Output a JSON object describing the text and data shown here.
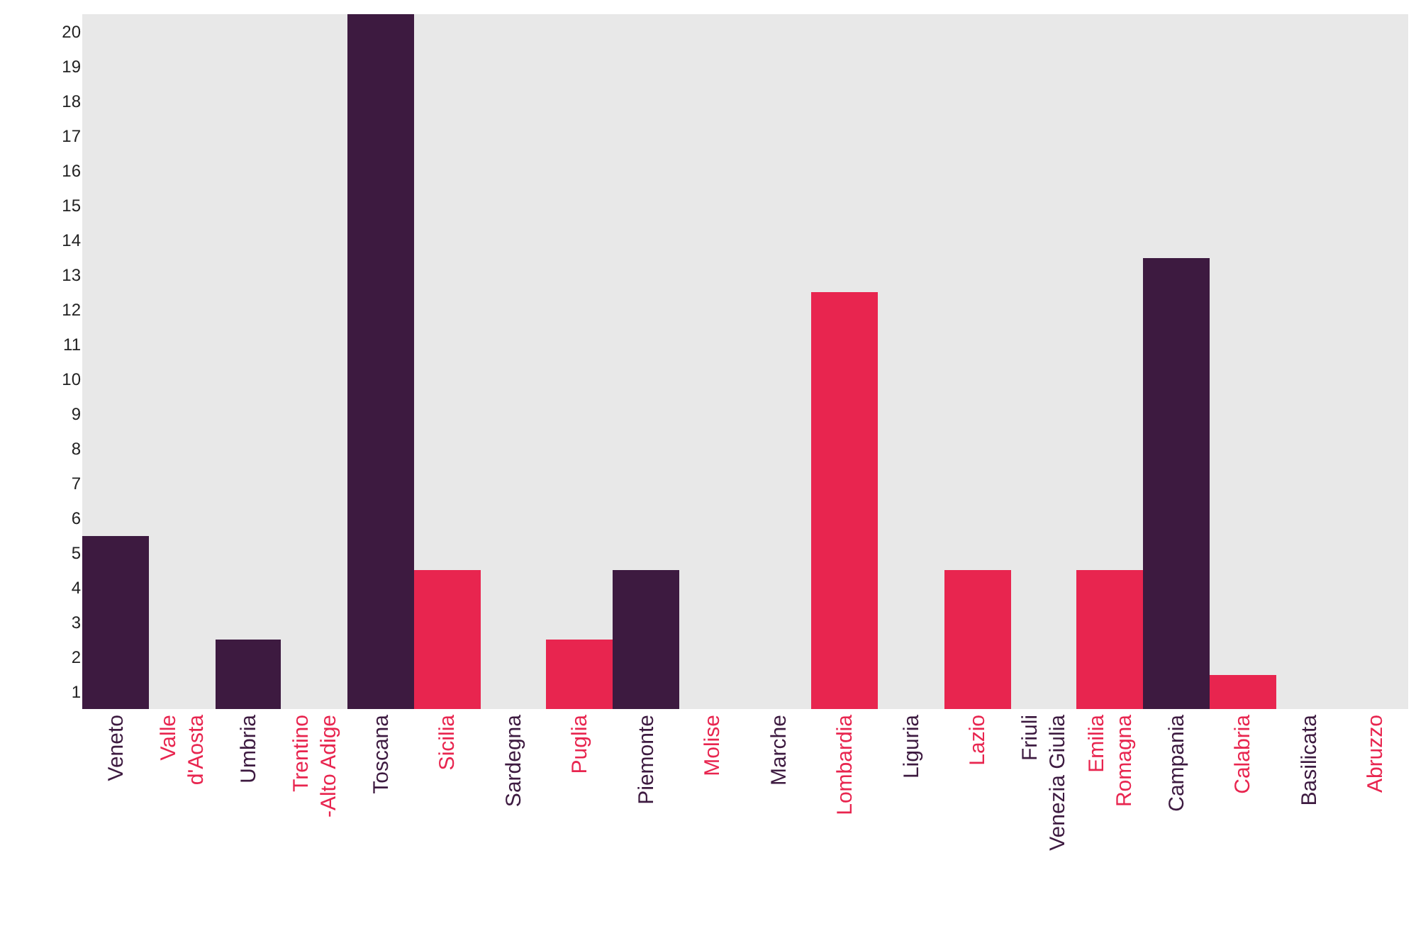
{
  "chart_data": {
    "type": "bar",
    "categories": [
      "Veneto",
      "Valle\nd'Aosta",
      "Umbria",
      "Trentino\n-Alto Adige",
      "Toscana",
      "Sicilia",
      "Sardegna",
      "Puglia",
      "Piemonte",
      "Molise",
      "Marche",
      "Lombardia",
      "Liguria",
      "Lazio",
      "Friuli\nVenezia Giulia",
      "Emilia\nRomagna",
      "Campania",
      "Calabria",
      "Basilicata",
      "Abruzzo"
    ],
    "values": [
      5,
      0,
      2,
      0,
      20,
      4,
      0,
      2,
      4,
      0,
      0,
      12,
      0,
      4,
      0,
      4,
      13,
      1,
      0,
      0
    ],
    "colors": [
      "#3d1a40",
      "#e8254f",
      "#3d1a40",
      "#e8254f",
      "#3d1a40",
      "#e8254f",
      "#3d1a40",
      "#e8254f",
      "#3d1a40",
      "#e8254f",
      "#3d1a40",
      "#e8254f",
      "#3d1a40",
      "#e8254f",
      "#3d1a40",
      "#e8254f",
      "#3d1a40",
      "#e8254f",
      "#3d1a40",
      "#e8254f"
    ],
    "ylim": [
      0,
      20
    ],
    "yticks": [
      {
        "value": 0.5,
        "label": "1"
      },
      {
        "value": 1.5,
        "label": "2"
      },
      {
        "value": 2.5,
        "label": "3"
      },
      {
        "value": 3.5,
        "label": "4"
      },
      {
        "value": 4.5,
        "label": "5"
      },
      {
        "value": 5.5,
        "label": "6"
      },
      {
        "value": 6.5,
        "label": "7"
      },
      {
        "value": 7.5,
        "label": "8"
      },
      {
        "value": 8.5,
        "label": "9"
      },
      {
        "value": 9.5,
        "label": "10"
      },
      {
        "value": 10.5,
        "label": "11"
      },
      {
        "value": 11.5,
        "label": "12"
      },
      {
        "value": 12.5,
        "label": "13"
      },
      {
        "value": 13.5,
        "label": "14"
      },
      {
        "value": 14.5,
        "label": "15"
      },
      {
        "value": 15.5,
        "label": "16"
      },
      {
        "value": 16.5,
        "label": "17"
      },
      {
        "value": 17.5,
        "label": "18"
      },
      {
        "value": 18.5,
        "label": "19"
      },
      {
        "value": 19.5,
        "label": "20"
      }
    ]
  }
}
